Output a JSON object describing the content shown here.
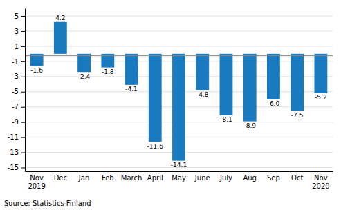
{
  "chart_data": {
    "type": "bar",
    "categories": [
      "Nov\n2019",
      "Dec",
      "Jan",
      "Feb",
      "March",
      "April",
      "May",
      "June",
      "July",
      "Aug",
      "Sep",
      "Oct",
      "Nov\n2020"
    ],
    "values": [
      -1.6,
      4.2,
      -2.4,
      -1.8,
      -4.1,
      -11.6,
      -14.1,
      -4.8,
      -8.1,
      -8.9,
      -6.0,
      -7.5,
      -5.2
    ],
    "value_labels": [
      "-1.6",
      "4.2",
      "-2.4",
      "-1.8",
      "-4.1",
      "-11.6",
      "-14.1",
      "-4.8",
      "-8.1",
      "-8.9",
      "-6.0",
      "-7.5",
      "-5.2"
    ],
    "data_labels": true,
    "color": "#1a7abf",
    "ylim": [
      -15.5,
      6.0
    ],
    "yticks": [
      5,
      3,
      1,
      -1,
      -3,
      -5,
      -7,
      -9,
      -11,
      -13,
      -15
    ],
    "hline": -0.25,
    "grid": true,
    "source": "Source: Statistics Finland"
  }
}
